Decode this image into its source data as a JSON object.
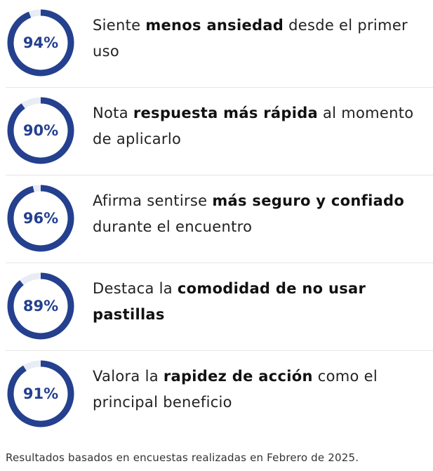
{
  "accent_color": "#24408e",
  "track_color": "#e8ecf5",
  "stats": [
    {
      "percent_label": "94%",
      "percent_value": 94,
      "text_before": "Siente ",
      "text_bold": "menos ansiedad",
      "text_after": " desde el primer uso"
    },
    {
      "percent_label": "90%",
      "percent_value": 90,
      "text_before": "Nota ",
      "text_bold": "respuesta más rápida",
      "text_after": " al momento de aplicarlo"
    },
    {
      "percent_label": "96%",
      "percent_value": 96,
      "text_before": "Afirma sentirse ",
      "text_bold": "más seguro y confiado",
      "text_after": " durante el encuentro"
    },
    {
      "percent_label": "89%",
      "percent_value": 89,
      "text_before": "Destaca la ",
      "text_bold": "comodidad de no usar pastillas",
      "text_after": ""
    },
    {
      "percent_label": "91%",
      "percent_value": 91,
      "text_before": "Valora la ",
      "text_bold": "rapidez de acción",
      "text_after": " como el principal beneficio"
    }
  ],
  "footnote": "Resultados basados en encuestas realizadas en Febrero de 2025."
}
